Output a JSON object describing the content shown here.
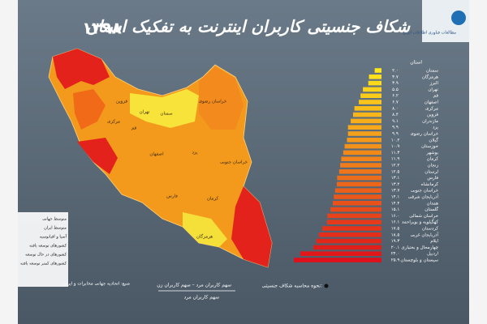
{
  "chart_data": {
    "type": "bar",
    "orientation": "horizontal",
    "title": "شکاف جنسیتی کاربران اینترنت به تفکیک استان",
    "year": "۱۳۹۸",
    "category_header": "استان",
    "categories": [
      "سمنان",
      "هرمزگان",
      "البرز",
      "تهران",
      "قم",
      "اصفهان",
      "مرکزی",
      "قزوین",
      "مازندران",
      "یزد",
      "خراسان رضوی",
      "گیلان",
      "خوزستان",
      "بوشهر",
      "کرمان",
      "زنجان",
      "لرستان",
      "فارس",
      "کرمانشاه",
      "خراسان جنوبی",
      "آذربایجان شرقی",
      "همدان",
      "گلستان",
      "خراسان شمالی",
      "کهگیلویه و بویراحمد",
      "کردستان",
      "آذربایجان غربی",
      "ایلام",
      "چهارمحال و بختیاری",
      "اردبیل",
      "سیستان و بلوچستان"
    ],
    "values": [
      2.0,
      3.7,
      3.9,
      5.5,
      6.2,
      6.7,
      8.0,
      8.4,
      9.1,
      9.9,
      9.9,
      10.2,
      10.9,
      11.3,
      11.9,
      12.2,
      12.5,
      13.1,
      13.2,
      13.7,
      14.1,
      14.4,
      15.1,
      16.0,
      16.1,
      17.5,
      18.5,
      19.3,
      20.1,
      24.0,
      25.9
    ],
    "value_labels": [
      "۲.۰",
      "۳.۷",
      "۳.۹",
      "۵.۵",
      "۶.۲",
      "۶.۷",
      "۸.۰",
      "۸.۴",
      "۹.۱",
      "۹.۹",
      "۹.۹",
      "۱۰.۲",
      "۱۰.۹",
      "۱۱.۳",
      "۱۱.۹",
      "۱۲.۲",
      "۱۲.۵",
      "۱۳.۱",
      "۱۳.۲",
      "۱۳.۷",
      "۱۴.۱",
      "۱۴.۴",
      "۱۵.۱",
      "۱۶.۰",
      "۱۶.۱",
      "۱۷.۵",
      "۱۸.۵",
      "۱۹.۳",
      "۲۰.۱",
      "۲۴.۰",
      "۲۵.۹"
    ],
    "color_scale": [
      "#ffe81a",
      "#e0101a"
    ],
    "formula_title": "نحوه محاسبه شکاف جنسیتی:",
    "formula_numerator": "سهم کاربران مرد – سهم کاربران زن",
    "formula_denominator": "سهم کاربران مرد"
  },
  "map": {
    "labels": [
      "سمنان",
      "تهران",
      "قم",
      "اصفهان",
      "یزد",
      "کرمان",
      "فارس",
      "هرمزگان",
      "خراسان رضوی",
      "خراسان جنوبی",
      "مرکزی",
      "قزوین"
    ]
  },
  "legend": {
    "items": [
      "متوسط جهانی",
      "متوسط ایران",
      "آسیا و اقیانوسیه",
      "کشورهای توسعه یافته",
      "کشورهای در حال توسعه",
      "کشورهای کمتر توسعه یافته"
    ],
    "source": "منبع: اتحادیه جهانی مخابرات و ایران"
  },
  "logo": {
    "text": "مطالعات فناوری اطلاعات ایران"
  }
}
